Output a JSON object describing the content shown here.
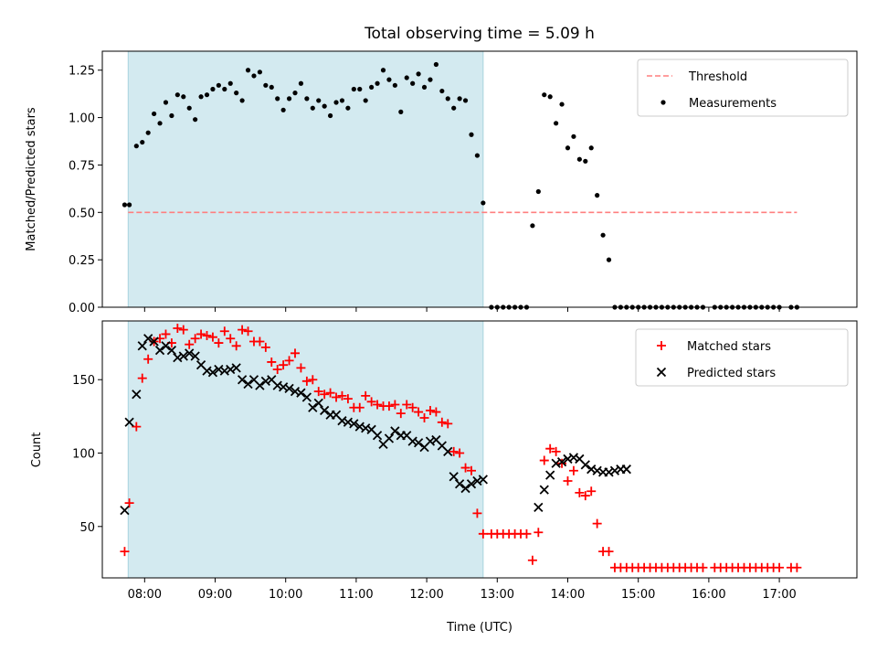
{
  "figure": {
    "title": "Total observing time = 5.09 h",
    "xlabel": "Time (UTC)"
  },
  "chart_data": [
    {
      "type": "scatter",
      "ylabel": "Matched/Predicted stars",
      "ylim": [
        0,
        1.35
      ],
      "yticks": [
        "0.00",
        "0.25",
        "0.50",
        "0.75",
        "1.00",
        "1.25"
      ],
      "ytick_values": [
        0,
        0.25,
        0.5,
        0.75,
        1.0,
        1.25
      ],
      "xlim_hours": [
        7.4,
        18.1
      ],
      "xticks": [
        "08:00",
        "09:00",
        "10:00",
        "11:00",
        "12:00",
        "13:00",
        "14:00",
        "15:00",
        "16:00",
        "17:00"
      ],
      "xtick_values": [
        8,
        9,
        10,
        11,
        12,
        13,
        14,
        15,
        16,
        17
      ],
      "shaded_span": {
        "start": "07:46",
        "end": "12:48",
        "color": "#d3eaf0"
      },
      "threshold": {
        "name": "Threshold",
        "value": 0.5,
        "x_start": "07:46",
        "x_end": "17:15",
        "color": "#ff7f7f"
      },
      "legend": {
        "position": "top-right",
        "entries": [
          "Threshold",
          "Measurements"
        ]
      },
      "series": [
        {
          "name": "Measurements",
          "color": "#000000",
          "x": [
            "07:43",
            "07:47",
            "07:53",
            "07:58",
            "08:03",
            "08:08",
            "08:13",
            "08:18",
            "08:23",
            "08:28",
            "08:33",
            "08:38",
            "08:43",
            "08:48",
            "08:53",
            "08:58",
            "09:03",
            "09:08",
            "09:13",
            "09:18",
            "09:23",
            "09:28",
            "09:33",
            "09:38",
            "09:43",
            "09:48",
            "09:53",
            "09:58",
            "10:03",
            "10:08",
            "10:13",
            "10:18",
            "10:23",
            "10:28",
            "10:33",
            "10:38",
            "10:43",
            "10:48",
            "10:53",
            "10:58",
            "11:03",
            "11:08",
            "11:13",
            "11:18",
            "11:23",
            "11:28",
            "11:33",
            "11:38",
            "11:43",
            "11:48",
            "11:53",
            "11:58",
            "12:03",
            "12:08",
            "12:13",
            "12:18",
            "12:23",
            "12:28",
            "12:33",
            "12:38",
            "12:43",
            "12:48",
            "12:55",
            "13:00",
            "13:05",
            "13:10",
            "13:15",
            "13:20",
            "13:25",
            "13:30",
            "13:35",
            "13:40",
            "13:45",
            "13:50",
            "13:55",
            "14:00",
            "14:05",
            "14:10",
            "14:15",
            "14:20",
            "14:25",
            "14:30",
            "14:35",
            "14:40",
            "14:45",
            "14:50",
            "14:55",
            "15:00",
            "15:05",
            "15:10",
            "15:15",
            "15:20",
            "15:25",
            "15:30",
            "15:35",
            "15:40",
            "15:45",
            "15:50",
            "15:55",
            "16:05",
            "16:10",
            "16:15",
            "16:20",
            "16:25",
            "16:30",
            "16:35",
            "16:40",
            "16:45",
            "16:50",
            "16:55",
            "17:00",
            "17:10",
            "17:15"
          ],
          "values": [
            0.54,
            0.54,
            0.85,
            0.87,
            0.92,
            1.02,
            0.97,
            1.08,
            1.01,
            1.12,
            1.11,
            1.05,
            0.99,
            1.11,
            1.12,
            1.15,
            1.17,
            1.15,
            1.18,
            1.13,
            1.09,
            1.25,
            1.22,
            1.24,
            1.17,
            1.16,
            1.1,
            1.04,
            1.1,
            1.13,
            1.18,
            1.1,
            1.05,
            1.09,
            1.06,
            1.01,
            1.08,
            1.09,
            1.05,
            1.15,
            1.15,
            1.09,
            1.16,
            1.18,
            1.25,
            1.2,
            1.17,
            1.03,
            1.21,
            1.18,
            1.23,
            1.16,
            1.2,
            1.28,
            1.14,
            1.1,
            1.05,
            1.1,
            1.09,
            0.91,
            0.8,
            0.55,
            0,
            0,
            0,
            0,
            0,
            0,
            0,
            0.43,
            0.61,
            1.12,
            1.11,
            0.97,
            1.07,
            0.84,
            0.9,
            0.78,
            0.77,
            0.84,
            0.59,
            0.38,
            0.25,
            0,
            0,
            0,
            0,
            0,
            0,
            0,
            0,
            0,
            0,
            0,
            0,
            0,
            0,
            0,
            0,
            0,
            0,
            0,
            0,
            0,
            0,
            0,
            0,
            0,
            0,
            0,
            0,
            0,
            0
          ]
        }
      ]
    },
    {
      "type": "scatter",
      "ylabel": "Count",
      "ylim": [
        15,
        190
      ],
      "yticks": [
        "50",
        "100",
        "150"
      ],
      "ytick_values": [
        50,
        100,
        150
      ],
      "xlim_hours": [
        7.4,
        18.1
      ],
      "shaded_span": {
        "start": "07:46",
        "end": "12:48",
        "color": "#d3eaf0"
      },
      "legend": {
        "position": "top-right",
        "entries": [
          "Matched stars",
          "Predicted stars"
        ]
      },
      "series": [
        {
          "name": "Matched stars",
          "marker": "+",
          "color": "#ff0000",
          "x": [
            "07:43",
            "07:47",
            "07:53",
            "07:58",
            "08:03",
            "08:08",
            "08:13",
            "08:18",
            "08:23",
            "08:28",
            "08:33",
            "08:38",
            "08:43",
            "08:48",
            "08:53",
            "08:58",
            "09:03",
            "09:08",
            "09:13",
            "09:18",
            "09:23",
            "09:28",
            "09:33",
            "09:38",
            "09:43",
            "09:48",
            "09:53",
            "09:58",
            "10:03",
            "10:08",
            "10:13",
            "10:18",
            "10:23",
            "10:28",
            "10:33",
            "10:38",
            "10:43",
            "10:48",
            "10:53",
            "10:58",
            "11:03",
            "11:08",
            "11:13",
            "11:18",
            "11:23",
            "11:28",
            "11:33",
            "11:38",
            "11:43",
            "11:48",
            "11:53",
            "11:58",
            "12:03",
            "12:08",
            "12:13",
            "12:18",
            "12:23",
            "12:28",
            "12:33",
            "12:38",
            "12:43",
            "12:48",
            "12:55",
            "13:00",
            "13:05",
            "13:10",
            "13:15",
            "13:20",
            "13:25",
            "13:30",
            "13:35",
            "13:40",
            "13:45",
            "13:50",
            "13:55",
            "14:00",
            "14:05",
            "14:10",
            "14:15",
            "14:20",
            "14:25",
            "14:30",
            "14:35",
            "14:40",
            "14:45",
            "14:50",
            "14:55",
            "15:00",
            "15:05",
            "15:10",
            "15:15",
            "15:20",
            "15:25",
            "15:30",
            "15:35",
            "15:40",
            "15:45",
            "15:50",
            "15:55",
            "16:05",
            "16:10",
            "16:15",
            "16:20",
            "16:25",
            "16:30",
            "16:35",
            "16:40",
            "16:45",
            "16:50",
            "16:55",
            "17:00",
            "17:10",
            "17:15"
          ],
          "values": [
            33,
            66,
            118,
            151,
            164,
            176,
            178,
            181,
            175,
            185,
            184,
            174,
            178,
            181,
            180,
            179,
            175,
            183,
            178,
            173,
            184,
            183,
            176,
            176,
            172,
            162,
            157,
            160,
            163,
            168,
            158,
            149,
            150,
            142,
            140,
            141,
            138,
            139,
            137,
            131,
            131,
            139,
            135,
            133,
            132,
            132,
            133,
            127,
            133,
            131,
            128,
            124,
            129,
            128,
            121,
            120,
            101,
            100,
            90,
            88,
            59,
            45,
            45,
            45,
            45,
            45,
            45,
            45,
            45,
            27,
            46,
            95,
            103,
            101,
            93,
            81,
            88,
            73,
            71,
            74,
            52,
            33,
            33,
            22,
            22,
            22,
            22,
            22,
            22,
            22,
            22,
            22,
            22,
            22,
            22,
            22,
            22,
            22,
            22,
            22,
            22,
            22,
            22,
            22,
            22,
            22,
            22,
            22,
            22,
            22,
            22,
            22,
            22
          ]
        },
        {
          "name": "Predicted stars",
          "marker": "x",
          "color": "#000000",
          "x": [
            "07:43",
            "07:47",
            "07:53",
            "07:58",
            "08:03",
            "08:08",
            "08:13",
            "08:18",
            "08:23",
            "08:28",
            "08:33",
            "08:38",
            "08:43",
            "08:48",
            "08:53",
            "08:58",
            "09:03",
            "09:08",
            "09:13",
            "09:18",
            "09:23",
            "09:28",
            "09:33",
            "09:38",
            "09:43",
            "09:48",
            "09:53",
            "09:58",
            "10:03",
            "10:08",
            "10:13",
            "10:18",
            "10:23",
            "10:28",
            "10:33",
            "10:38",
            "10:43",
            "10:48",
            "10:53",
            "10:58",
            "11:03",
            "11:08",
            "11:13",
            "11:18",
            "11:23",
            "11:28",
            "11:33",
            "11:38",
            "11:43",
            "11:48",
            "11:53",
            "11:58",
            "12:03",
            "12:08",
            "12:13",
            "12:18",
            "12:23",
            "12:28",
            "12:33",
            "12:38",
            "12:43",
            "12:48",
            "13:35",
            "13:40",
            "13:45",
            "13:50",
            "13:55",
            "14:00",
            "14:05",
            "14:10",
            "14:15",
            "14:20",
            "14:25",
            "14:30",
            "14:35",
            "14:40",
            "14:45",
            "14:50"
          ],
          "values": [
            61,
            121,
            140,
            173,
            178,
            176,
            170,
            173,
            170,
            165,
            166,
            168,
            166,
            160,
            156,
            155,
            157,
            156,
            157,
            158,
            150,
            147,
            150,
            146,
            149,
            150,
            146,
            145,
            144,
            142,
            141,
            138,
            131,
            134,
            129,
            126,
            126,
            122,
            121,
            120,
            118,
            117,
            116,
            112,
            106,
            110,
            115,
            112,
            112,
            108,
            107,
            104,
            108,
            109,
            105,
            101,
            84,
            79,
            76,
            79,
            81,
            82,
            63,
            75,
            85,
            93,
            94,
            96,
            97,
            96,
            92,
            89,
            88,
            87,
            87,
            88,
            89,
            89
          ]
        }
      ]
    }
  ]
}
